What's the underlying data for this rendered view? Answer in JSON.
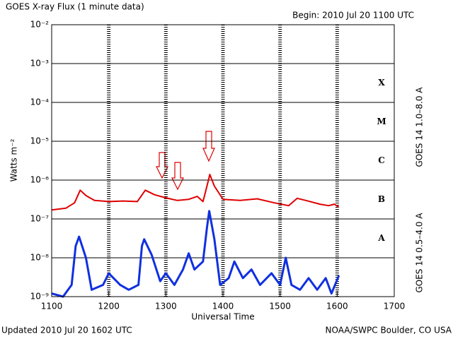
{
  "chart_data": {
    "type": "line",
    "title": "GOES X-ray Flux (1 minute data)",
    "subtitle": "Begin: 2010 Jul 20 1100 UTC",
    "footer_left": "Updated 2010 Jul 20 1602 UTC",
    "footer_right": "NOAA/SWPC Boulder, CO USA",
    "x_label": "Universal Time",
    "y_label": "Watts m⁻²",
    "log_y": true,
    "grid": true,
    "xlim": [
      11,
      17
    ],
    "xticks": [
      {
        "value": 11,
        "label": "1100"
      },
      {
        "value": 12,
        "label": "1200"
      },
      {
        "value": 13,
        "label": "1300"
      },
      {
        "value": 14,
        "label": "1400"
      },
      {
        "value": 15,
        "label": "1500"
      },
      {
        "value": 16,
        "label": "1600"
      },
      {
        "value": 17,
        "label": "1700"
      }
    ],
    "ylim": [
      1e-09,
      0.01
    ],
    "yticks": [
      {
        "value": 1e-09,
        "label": "10⁻⁹"
      },
      {
        "value": 1e-08,
        "label": "10⁻⁸"
      },
      {
        "value": 1e-07,
        "label": "10⁻⁷"
      },
      {
        "value": 1e-06,
        "label": "10⁻⁶"
      },
      {
        "value": 1e-05,
        "label": "10⁻⁵"
      },
      {
        "value": 0.0001,
        "label": "10⁻⁴"
      },
      {
        "value": 0.001,
        "label": "10⁻³"
      },
      {
        "value": 0.01,
        "label": "10⁻²"
      }
    ],
    "flare_classes": [
      "A",
      "B",
      "C",
      "M",
      "X"
    ],
    "series": [
      {
        "name": "GOES 14 1.0–8.0 A",
        "color": "#e00000",
        "x": [
          11.0,
          11.25,
          11.4,
          11.5,
          11.6,
          11.75,
          12.0,
          12.25,
          12.5,
          12.64,
          12.8,
          13.0,
          13.2,
          13.4,
          13.55,
          13.65,
          13.72,
          13.77,
          13.85,
          14.0,
          14.3,
          14.6,
          14.9,
          15.15,
          15.3,
          15.45,
          15.7,
          15.85,
          15.95,
          16.03
        ],
        "values": [
          1.7e-07,
          1.9e-07,
          2.6e-07,
          5.5e-07,
          4e-07,
          3e-07,
          2.8e-07,
          2.9e-07,
          2.8e-07,
          5.5e-07,
          4.2e-07,
          3.5e-07,
          3e-07,
          3.2e-07,
          3.8e-07,
          2.8e-07,
          7e-07,
          1.4e-06,
          7e-07,
          3.2e-07,
          3e-07,
          3.3e-07,
          2.6e-07,
          2.2e-07,
          3.4e-07,
          3e-07,
          2.4e-07,
          2.2e-07,
          2.4e-07,
          2e-07
        ]
      },
      {
        "name": "GOES 14 0.5–4.0 A",
        "color": "#1030e0",
        "x": [
          11.0,
          11.2,
          11.35,
          11.42,
          11.48,
          11.6,
          11.7,
          11.9,
          12.0,
          12.2,
          12.35,
          12.52,
          12.58,
          12.62,
          12.75,
          12.9,
          13.0,
          13.15,
          13.3,
          13.4,
          13.5,
          13.65,
          13.72,
          13.76,
          13.85,
          13.95,
          14.1,
          14.2,
          14.35,
          14.5,
          14.65,
          14.85,
          15.0,
          15.1,
          15.2,
          15.35,
          15.5,
          15.65,
          15.8,
          15.9,
          16.03
        ],
        "values": [
          1.2e-09,
          1e-09,
          2e-09,
          2e-08,
          3.5e-08,
          1e-08,
          1.5e-09,
          2e-09,
          4e-09,
          2e-09,
          1.5e-09,
          2e-09,
          2e-08,
          3e-08,
          1.2e-08,
          2.5e-09,
          4e-09,
          2e-09,
          5e-09,
          1.3e-08,
          5e-09,
          8e-09,
          6e-08,
          1.6e-07,
          3e-08,
          2e-09,
          3e-09,
          8e-09,
          3e-09,
          5e-09,
          2e-09,
          4e-09,
          2e-09,
          1e-08,
          2e-09,
          1.5e-09,
          3e-09,
          1.5e-09,
          3e-09,
          1.2e-09,
          3.5e-09
        ]
      }
    ]
  }
}
